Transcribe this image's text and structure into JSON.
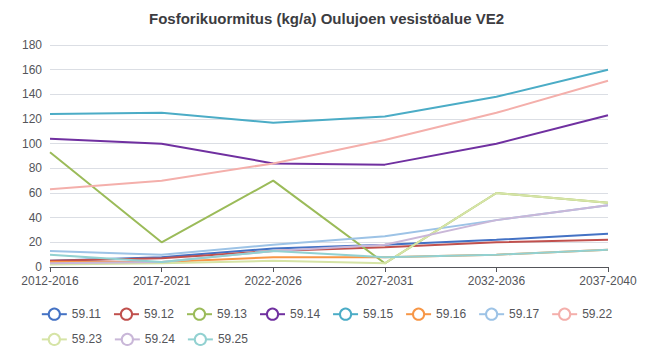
{
  "chart_data": {
    "type": "line",
    "title": "Fosforikuormitus (kg/a) Oulujoen vesistöalue VE2",
    "categories": [
      "2012-2016",
      "2017-2021",
      "2022-2026",
      "2027-2031",
      "2032-2036",
      "2037-2040"
    ],
    "series": [
      {
        "name": "59.11",
        "color": "#4472C4",
        "values": [
          5,
          8,
          15,
          18,
          22,
          27
        ]
      },
      {
        "name": "59.12",
        "color": "#C0504D",
        "values": [
          5,
          7,
          13,
          16,
          20,
          22
        ]
      },
      {
        "name": "59.13",
        "color": "#9BBB59",
        "values": [
          93,
          20,
          70,
          3,
          60,
          52
        ]
      },
      {
        "name": "59.14",
        "color": "#7030A0",
        "values": [
          104,
          100,
          84,
          83,
          100,
          123
        ]
      },
      {
        "name": "59.15",
        "color": "#4BACC6",
        "values": [
          124,
          125,
          117,
          122,
          138,
          160
        ]
      },
      {
        "name": "59.16",
        "color": "#F79646",
        "values": [
          4,
          4,
          8,
          8,
          10,
          14
        ]
      },
      {
        "name": "59.17",
        "color": "#9DC3E6",
        "values": [
          13,
          10,
          18,
          25,
          38,
          50
        ]
      },
      {
        "name": "59.22",
        "color": "#F4AFAB",
        "values": [
          63,
          70,
          84,
          103,
          125,
          151
        ]
      },
      {
        "name": "59.23",
        "color": "#D6E4A6",
        "values": [
          2,
          3,
          5,
          3,
          60,
          52
        ]
      },
      {
        "name": "59.24",
        "color": "#C9B7D8",
        "values": [
          3,
          4,
          13,
          18,
          38,
          50
        ]
      },
      {
        "name": "59.25",
        "color": "#92D1D1",
        "values": [
          10,
          4,
          13,
          8,
          10,
          14
        ]
      }
    ],
    "ylim": [
      0,
      180
    ],
    "yticks": [
      0,
      20,
      40,
      60,
      80,
      100,
      120,
      140,
      160,
      180
    ],
    "grid": true,
    "legend": "bottom"
  }
}
